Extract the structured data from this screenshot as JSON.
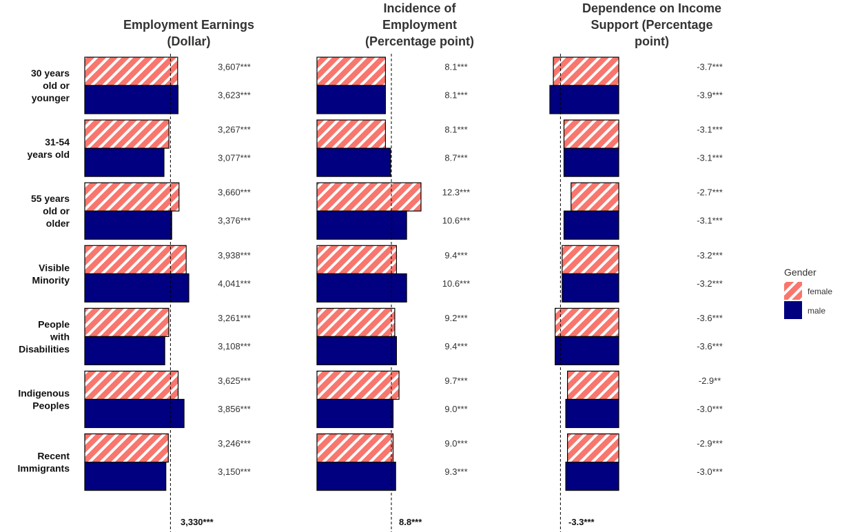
{
  "legend": {
    "title": "Gender",
    "items": [
      {
        "key": "female",
        "label": "female",
        "color": "#F8766D",
        "pattern": "diagonal-stripes"
      },
      {
        "key": "male",
        "label": "male",
        "color": "#000080",
        "pattern": "solid"
      }
    ]
  },
  "chart_data": {
    "type": "bar",
    "orientation": "horizontal",
    "groups": [
      "30 years old or younger",
      "31-54 years old",
      "55 years old or older",
      "Visible Minority",
      "People with Disabilities",
      "Indigenous Peoples",
      "Recent Immigrants"
    ],
    "group_label_lines": [
      [
        "30 years",
        "old or",
        "younger"
      ],
      [
        "31-54",
        "years old"
      ],
      [
        "55 years",
        "old or",
        "older"
      ],
      [
        "Visible",
        "Minority"
      ],
      [
        "People",
        "with",
        "Disabilities"
      ],
      [
        "Indigenous",
        "Peoples"
      ],
      [
        "Recent",
        "Immigrants"
      ]
    ],
    "panels": [
      {
        "title_lines": [
          "Employment Earnings",
          "(Dollar)"
        ],
        "average": 3330,
        "average_label": "3,330***",
        "xlim": [
          0,
          4041
        ],
        "series": [
          {
            "name": "female",
            "values": [
              3607,
              3267,
              3660,
              3938,
              3261,
              3625,
              3246
            ],
            "labels": [
              "3,607***",
              "3,267***",
              "3,660***",
              "3,938***",
              "3,261***",
              "3,625***",
              "3,246***"
            ]
          },
          {
            "name": "male",
            "values": [
              3623,
              3077,
              3376,
              4041,
              3108,
              3856,
              3150
            ],
            "labels": [
              "3,623***",
              "3,077***",
              "3,376***",
              "4,041***",
              "3,108***",
              "3,856***",
              "3,150***"
            ]
          }
        ]
      },
      {
        "title_lines": [
          "Incidence of",
          "Employment",
          "(Percentage point)"
        ],
        "average": 8.8,
        "average_label": "8.8***",
        "xlim": [
          0,
          12.3
        ],
        "series": [
          {
            "name": "female",
            "values": [
              8.1,
              8.1,
              12.3,
              9.4,
              9.2,
              9.7,
              9.0
            ],
            "labels": [
              "8.1***",
              "8.1***",
              "12.3***",
              "9.4***",
              "9.2***",
              "9.7***",
              "9.0***"
            ]
          },
          {
            "name": "male",
            "values": [
              8.1,
              8.7,
              10.6,
              10.6,
              9.4,
              9.0,
              9.3
            ],
            "labels": [
              "8.1***",
              "8.7***",
              "10.6***",
              "10.6***",
              "9.4***",
              "9.0***",
              "9.3***"
            ]
          }
        ]
      },
      {
        "title_lines": [
          "Dependence on Income",
          "Support (Percentage",
          "point)"
        ],
        "average": -3.3,
        "average_label": "-3.3***",
        "xlim": [
          -3.9,
          0
        ],
        "series": [
          {
            "name": "female",
            "values": [
              -3.7,
              -3.1,
              -2.7,
              -3.2,
              -3.6,
              -2.9,
              -2.9
            ],
            "labels": [
              "-3.7***",
              "-3.1***",
              "-2.7***",
              "-3.2***",
              "-3.6***",
              "-2.9**",
              "-2.9***"
            ]
          },
          {
            "name": "male",
            "values": [
              -3.9,
              -3.1,
              -3.1,
              -3.2,
              -3.6,
              -3.0,
              -3.0
            ],
            "labels": [
              "-3.9***",
              "-3.1***",
              "-3.1***",
              "-3.2***",
              "-3.6***",
              "-3.0***",
              "-3.0***"
            ]
          }
        ]
      }
    ]
  }
}
